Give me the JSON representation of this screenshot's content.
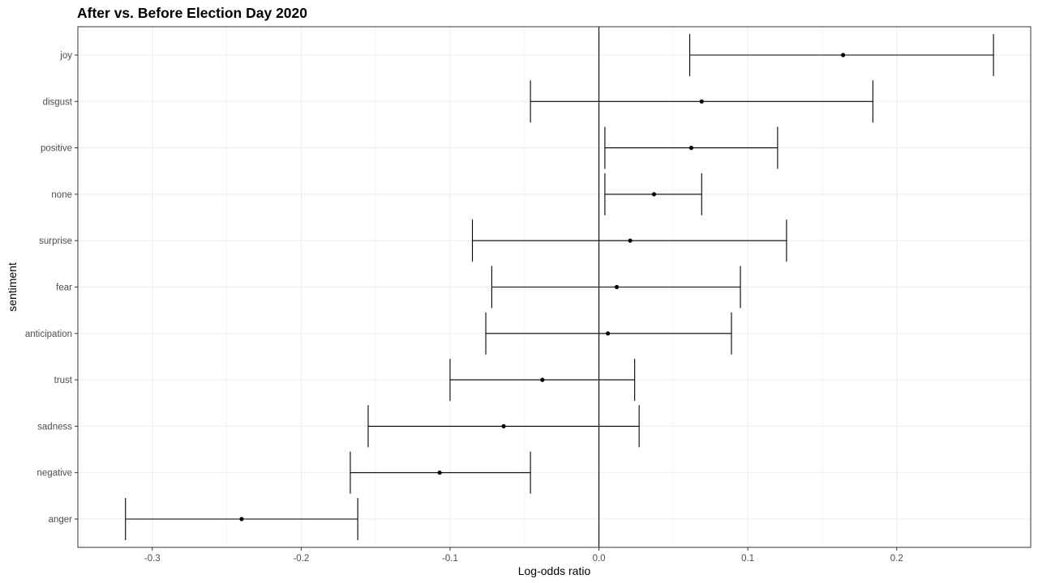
{
  "chart_data": {
    "type": "errorbar",
    "title": "After vs. Before Election Day 2020",
    "xlabel": "Log-odds ratio",
    "ylabel": "sentiment",
    "xlim": [
      -0.35,
      0.29
    ],
    "x_ticks": [
      -0.3,
      -0.2,
      -0.1,
      0.0,
      0.1,
      0.2
    ],
    "x_tick_labels": [
      "-0.3",
      "-0.2",
      "-0.1",
      "0.0",
      "0.1",
      "0.2"
    ],
    "reference_line_x": 0,
    "grid": true,
    "categories": [
      "joy",
      "disgust",
      "positive",
      "none",
      "surprise",
      "fear",
      "anticipation",
      "trust",
      "sadness",
      "negative",
      "anger"
    ],
    "estimates": [
      0.164,
      0.069,
      0.062,
      0.037,
      0.021,
      0.012,
      0.006,
      -0.038,
      -0.064,
      -0.107,
      -0.24
    ],
    "lower": [
      0.061,
      -0.046,
      0.004,
      0.004,
      -0.085,
      -0.072,
      -0.076,
      -0.1,
      -0.155,
      -0.167,
      -0.318
    ],
    "upper": [
      0.265,
      0.184,
      0.12,
      0.069,
      0.126,
      0.095,
      0.089,
      0.024,
      0.027,
      -0.046,
      -0.162
    ]
  }
}
